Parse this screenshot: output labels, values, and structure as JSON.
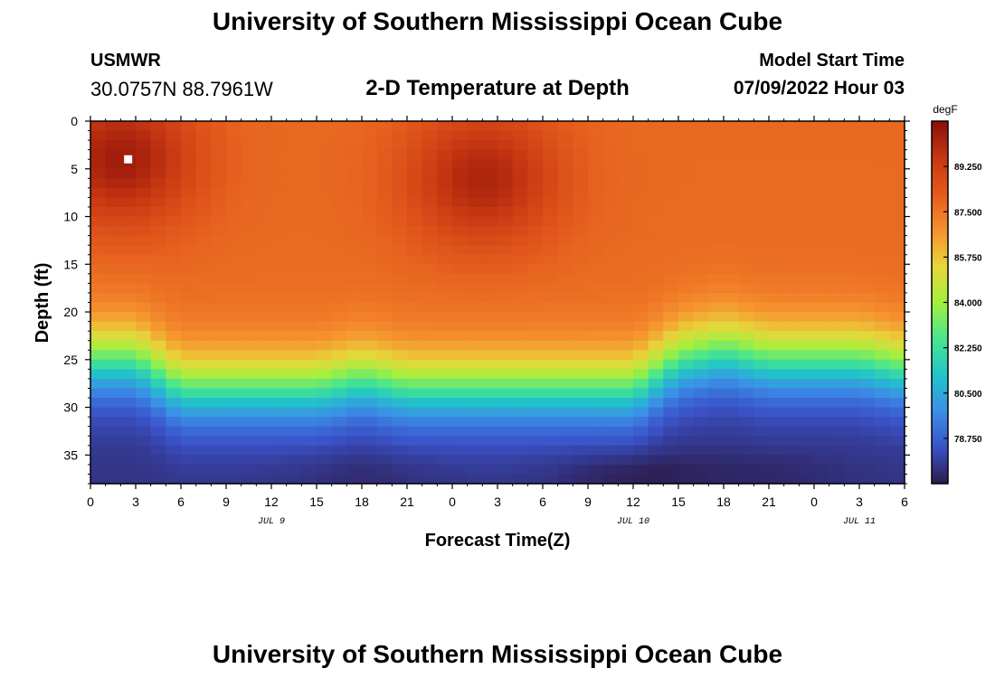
{
  "header": {
    "title": "University of Southern Mississippi Ocean Cube",
    "station": "USMWR",
    "coords": "30.0757N  88.7961W",
    "subtitle": "2-D Temperature at Depth",
    "model_label": "Model Start Time",
    "model_time": "07/09/2022 Hour 03"
  },
  "footer": {
    "title": "University of Southern Mississippi Ocean Cube"
  },
  "colors": {
    "scale": [
      "#2c1a4a",
      "#3a52c8",
      "#3b8fe8",
      "#22c4c8",
      "#48e68e",
      "#a4ef3e",
      "#e8d63a",
      "#f6902e",
      "#e45a1c",
      "#c63612",
      "#8c0f08"
    ]
  },
  "chart_data": {
    "type": "heatmap",
    "title": "2-D Temperature at Depth",
    "xlabel": "Forecast Time(Z)",
    "ylabel": "Depth (ft)",
    "x_tick_labels": [
      "0",
      "3",
      "6",
      "9",
      "12",
      "15",
      "18",
      "21",
      "0",
      "3",
      "6",
      "9",
      "12",
      "15",
      "18",
      "21",
      "0",
      "3",
      "6"
    ],
    "x_range_hours": [
      0,
      54
    ],
    "date_labels": [
      {
        "label": "JUL 9",
        "hour": 12
      },
      {
        "label": "JUL 10",
        "hour": 36
      },
      {
        "label": "JUL 11",
        "hour": 51
      }
    ],
    "y_tick_labels": [
      "0",
      "5",
      "10",
      "15",
      "20",
      "25",
      "30",
      "35"
    ],
    "ylim": [
      0,
      38
    ],
    "colorbar": {
      "unit": "degF",
      "min": 77.0,
      "max": 91.0,
      "tick_values": [
        78.75,
        80.5,
        82.25,
        84.0,
        85.75,
        87.5,
        89.25
      ],
      "tick_labels": [
        "78.750",
        "80.500",
        "82.250",
        "84.000",
        "85.750",
        "87.500",
        "89.250"
      ]
    },
    "thermocline_depth_ft": [
      {
        "hour": 0,
        "depth": 21
      },
      {
        "hour": 3,
        "depth": 21
      },
      {
        "hour": 6,
        "depth": 24
      },
      {
        "hour": 9,
        "depth": 24
      },
      {
        "hour": 12,
        "depth": 24
      },
      {
        "hour": 15,
        "depth": 24
      },
      {
        "hour": 18,
        "depth": 23
      },
      {
        "hour": 21,
        "depth": 24
      },
      {
        "hour": 24,
        "depth": 24
      },
      {
        "hour": 27,
        "depth": 24
      },
      {
        "hour": 30,
        "depth": 24
      },
      {
        "hour": 33,
        "depth": 24
      },
      {
        "hour": 36,
        "depth": 24
      },
      {
        "hour": 39,
        "depth": 21
      },
      {
        "hour": 42,
        "depth": 20
      },
      {
        "hour": 45,
        "depth": 21
      },
      {
        "hour": 48,
        "depth": 21
      },
      {
        "hour": 51,
        "depth": 21
      },
      {
        "hour": 54,
        "depth": 22
      }
    ],
    "warm_cores": [
      {
        "hour": 2,
        "depth": 4,
        "temp": 90.5
      },
      {
        "hour": 26,
        "depth": 6,
        "temp": 90.2
      }
    ],
    "cold_cores": [
      {
        "hour": 18,
        "depth": 37,
        "temp": 77.3
      },
      {
        "hour": 36,
        "depth": 37,
        "temp": 77.0
      },
      {
        "hour": 45,
        "depth": 37,
        "temp": 77.3
      }
    ],
    "marker": {
      "hour": 2.5,
      "depth": 4
    }
  }
}
